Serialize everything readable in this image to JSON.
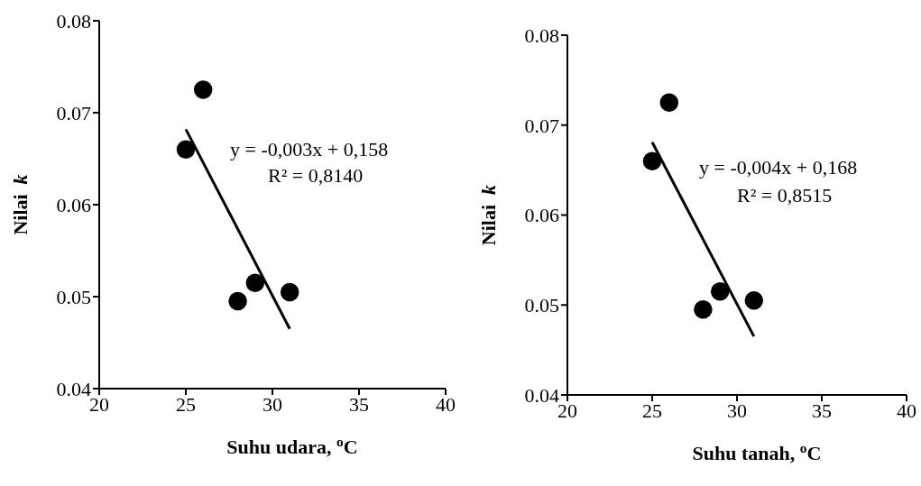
{
  "chart_data": [
    {
      "type": "scatter",
      "xlabel": "Suhu udara, $^{o}$C",
      "ylabel": "Nilai k",
      "xlim": [
        20,
        40
      ],
      "xticks": [
        20,
        25,
        30,
        35,
        40
      ],
      "ylim": [
        0.04,
        0.08
      ],
      "yticks": [
        0.04,
        0.05,
        0.06,
        0.07,
        0.08
      ],
      "grid": false,
      "annotations": [
        "y = -0,003x + 0,158",
        "R² = 0,8140"
      ],
      "series": [
        {
          "color": "#000000",
          "marker": "circle",
          "x": [
            25,
            26,
            28,
            29,
            31
          ],
          "values": [
            0.066,
            0.0725,
            0.0495,
            0.0515,
            0.0505
          ]
        },
        {
          "type": "line",
          "color": "#000000",
          "x": [
            25,
            31
          ],
          "values": [
            0.0682,
            0.0465
          ]
        }
      ]
    },
    {
      "type": "scatter",
      "xlabel": "Suhu tanah, $^{o}$C",
      "ylabel": "Nilai k",
      "xlim": [
        20,
        40
      ],
      "xticks": [
        20,
        25,
        30,
        35,
        40
      ],
      "ylim": [
        0.04,
        0.08
      ],
      "yticks": [
        0.04,
        0.05,
        0.06,
        0.07,
        0.08
      ],
      "grid": false,
      "annotations": [
        "y = -0,004x + 0,168",
        "R² = 0,8515"
      ],
      "series": [
        {
          "color": "#000000",
          "marker": "circle",
          "x": [
            25,
            26,
            28,
            29,
            31
          ],
          "values": [
            0.066,
            0.0725,
            0.0495,
            0.0515,
            0.0505
          ]
        },
        {
          "type": "line",
          "color": "#000000",
          "x": [
            25,
            31
          ],
          "values": [
            0.0681,
            0.0465
          ]
        }
      ]
    }
  ]
}
